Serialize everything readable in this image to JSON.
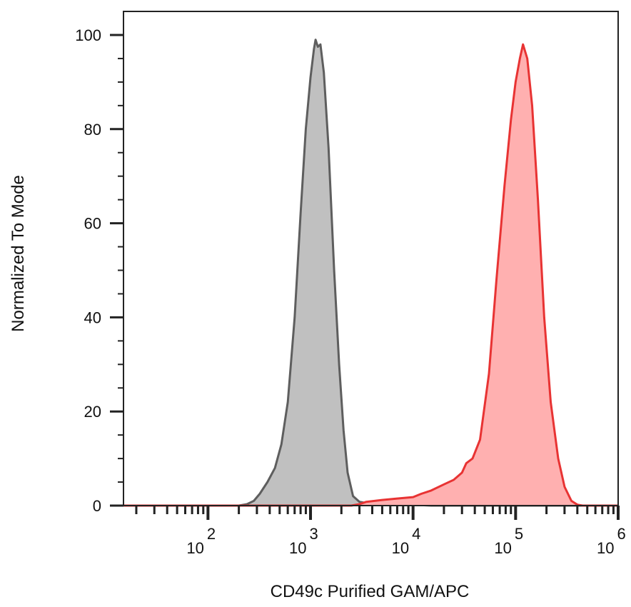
{
  "chart_data": {
    "type": "area",
    "xlabel": "CD49c Purified GAM/APC",
    "ylabel": "Normalized To Mode",
    "xscale": "log",
    "xlim": [
      15,
      1000000
    ],
    "ylim": [
      0,
      100
    ],
    "grid": false,
    "legend": "none",
    "y_ticks": [
      0,
      20,
      40,
      60,
      80,
      100
    ],
    "x_ticks": [
      {
        "base": "10",
        "exp": "2",
        "value": 100
      },
      {
        "base": "10",
        "exp": "3",
        "value": 1000
      },
      {
        "base": "10",
        "exp": "4",
        "value": 10000
      },
      {
        "base": "10",
        "exp": "5",
        "value": 100000
      },
      {
        "base": "10",
        "exp": "6",
        "value": 1000000
      }
    ],
    "series": [
      {
        "color": "#5e5e5e",
        "fill": "#c0c0c0",
        "points": [
          [
            15,
            0
          ],
          [
            200,
            0
          ],
          [
            240,
            0.3
          ],
          [
            280,
            1
          ],
          [
            320,
            2.5
          ],
          [
            380,
            5
          ],
          [
            450,
            8
          ],
          [
            520,
            13
          ],
          [
            600,
            22
          ],
          [
            700,
            40
          ],
          [
            800,
            62
          ],
          [
            900,
            80
          ],
          [
            1000,
            91
          ],
          [
            1080,
            97
          ],
          [
            1120,
            99
          ],
          [
            1180,
            97.5
          ],
          [
            1250,
            98
          ],
          [
            1350,
            92
          ],
          [
            1500,
            76
          ],
          [
            1700,
            50
          ],
          [
            1900,
            30
          ],
          [
            2100,
            16
          ],
          [
            2300,
            7
          ],
          [
            2600,
            2
          ],
          [
            3000,
            0.8
          ],
          [
            4000,
            0.3
          ],
          [
            5000,
            0.5
          ],
          [
            6000,
            1
          ],
          [
            7000,
            0.8
          ],
          [
            8000,
            0.4
          ],
          [
            10000,
            0.2
          ],
          [
            15000,
            0
          ],
          [
            1000000,
            0
          ]
        ]
      },
      {
        "color": "#e83333",
        "fill": "#ffb0b0",
        "points": [
          [
            15,
            0
          ],
          [
            2500,
            0
          ],
          [
            3000,
            0.3
          ],
          [
            3500,
            0.8
          ],
          [
            5000,
            1.2
          ],
          [
            7000,
            1.5
          ],
          [
            10000,
            1.8
          ],
          [
            12000,
            2.5
          ],
          [
            15000,
            3.2
          ],
          [
            20000,
            4.5
          ],
          [
            25000,
            5.5
          ],
          [
            30000,
            7
          ],
          [
            33000,
            9
          ],
          [
            38000,
            10
          ],
          [
            45000,
            14
          ],
          [
            55000,
            28
          ],
          [
            65000,
            48
          ],
          [
            78000,
            68
          ],
          [
            90000,
            82
          ],
          [
            100000,
            90
          ],
          [
            110000,
            95
          ],
          [
            118000,
            98
          ],
          [
            130000,
            95
          ],
          [
            145000,
            85
          ],
          [
            165000,
            65
          ],
          [
            190000,
            40
          ],
          [
            220000,
            22
          ],
          [
            260000,
            10
          ],
          [
            300000,
            4
          ],
          [
            350000,
            1
          ],
          [
            400000,
            0.2
          ],
          [
            450000,
            0
          ],
          [
            1000000,
            0
          ]
        ]
      }
    ]
  }
}
